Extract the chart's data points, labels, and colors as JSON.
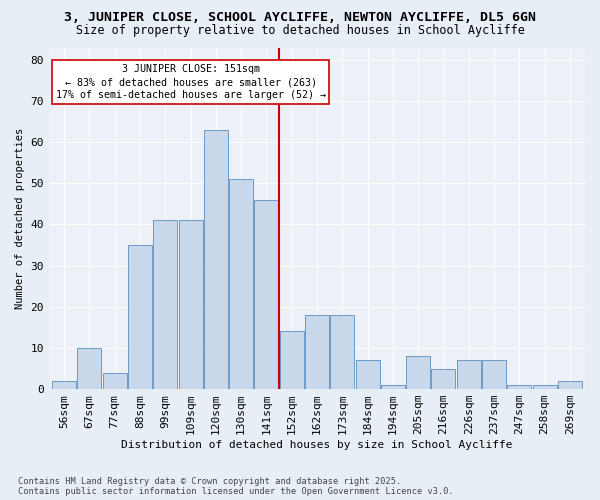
{
  "title1": "3, JUNIPER CLOSE, SCHOOL AYCLIFFE, NEWTON AYCLIFFE, DL5 6GN",
  "title2": "Size of property relative to detached houses in School Aycliffe",
  "xlabel": "Distribution of detached houses by size in School Aycliffe",
  "ylabel": "Number of detached properties",
  "bin_labels": [
    "56sqm",
    "67sqm",
    "77sqm",
    "88sqm",
    "99sqm",
    "109sqm",
    "120sqm",
    "130sqm",
    "141sqm",
    "152sqm",
    "162sqm",
    "173sqm",
    "184sqm",
    "194sqm",
    "205sqm",
    "216sqm",
    "226sqm",
    "237sqm",
    "247sqm",
    "258sqm",
    "269sqm"
  ],
  "bar_heights": [
    2,
    10,
    4,
    35,
    41,
    41,
    63,
    51,
    46,
    14,
    18,
    18,
    7,
    1,
    8,
    5,
    7,
    7,
    1,
    1,
    2
  ],
  "bar_color": "#c8d8ea",
  "bar_edge_color": "#5a8fc0",
  "vline_color": "#cc0000",
  "vline_x_index": 8.5,
  "annotation_title": "3 JUNIPER CLOSE: 151sqm",
  "annotation_line1": "← 83% of detached houses are smaller (263)",
  "annotation_line2": "17% of semi-detached houses are larger (52) →",
  "annotation_box_color": "#ffffff",
  "annotation_border_color": "#cc0000",
  "footnote1": "Contains HM Land Registry data © Crown copyright and database right 2025.",
  "footnote2": "Contains public sector information licensed under the Open Government Licence v3.0.",
  "bg_color": "#e8eef5",
  "plot_bg_color": "#edf1f7",
  "grid_color": "#ffffff",
  "ylim": [
    0,
    83
  ],
  "title1_fontsize": 9.5,
  "title2_fontsize": 8.5
}
